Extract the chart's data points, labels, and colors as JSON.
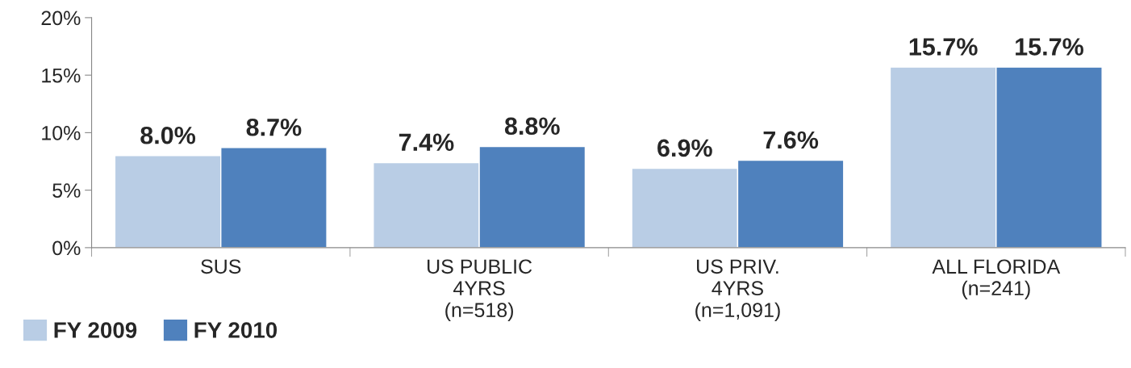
{
  "chart_data": {
    "type": "bar",
    "categories": [
      "SUS",
      "US PUBLIC\n4YRS\n(n=518)",
      "US PRIV.\n4YRS\n(n=1,091)",
      "ALL FLORIDA\n(n=241)"
    ],
    "series": [
      {
        "name": "FY 2009",
        "color": "#b9cde5",
        "values": [
          8.0,
          7.4,
          6.9,
          15.7
        ],
        "value_labels": [
          "8.0%",
          "7.4%",
          "6.9%",
          "15.7%"
        ]
      },
      {
        "name": "FY 2010",
        "color": "#4f81bd",
        "values": [
          8.7,
          8.8,
          7.6,
          15.7
        ],
        "value_labels": [
          "8.7%",
          "8.8%",
          "7.6%",
          "15.7%"
        ]
      }
    ],
    "ylim": [
      0,
      20
    ],
    "yticks": [
      {
        "value": 0,
        "label": "0%"
      },
      {
        "value": 5,
        "label": "5%"
      },
      {
        "value": 10,
        "label": "10%"
      },
      {
        "value": 15,
        "label": "15%"
      },
      {
        "value": 20,
        "label": "20%"
      }
    ],
    "grid": false,
    "legend": "bottom left"
  }
}
